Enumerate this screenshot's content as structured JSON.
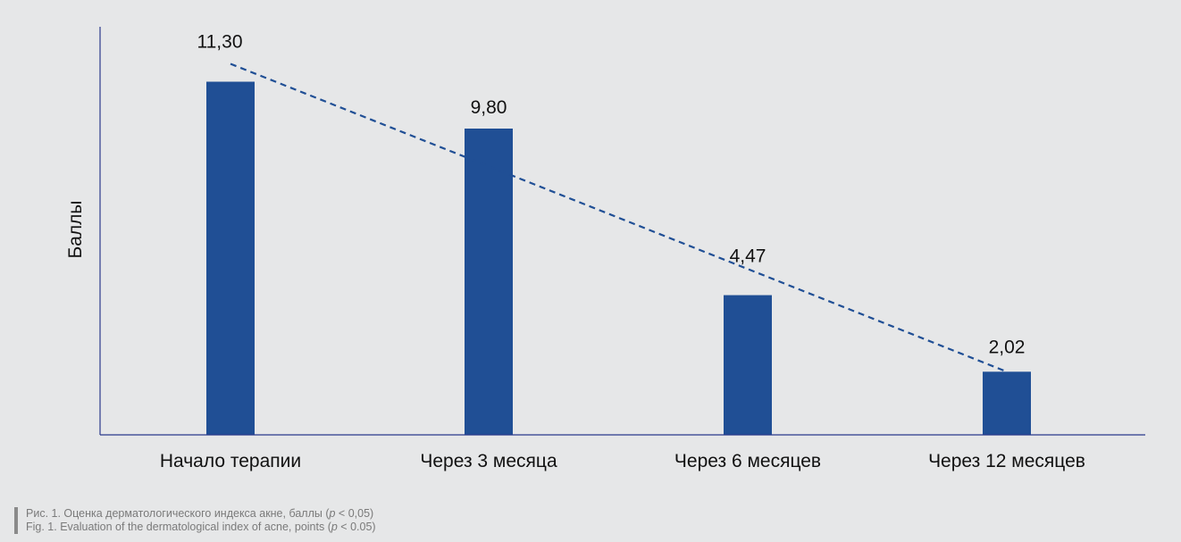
{
  "chart_data": {
    "type": "bar",
    "categories": [
      "Начало терапии",
      "Через 3 месяца",
      "Через 6 месяцев",
      "Через 12 месяцев"
    ],
    "values": [
      11.3,
      9.8,
      4.47,
      2.02
    ],
    "value_labels": [
      "11,30",
      "9,80",
      "4,47",
      "2,02"
    ],
    "ylabel": "Баллы",
    "xlabel": "",
    "trendline": "dashed",
    "grid": false,
    "colors": {
      "bar": "#204f95",
      "trend": "#204f95",
      "axis": "#2b3a8c",
      "background": "#e6e7e8"
    }
  },
  "caption": {
    "ru": {
      "before": "Рис. 1. Оценка дерматологического индекса акне, баллы (",
      "p": "p",
      "after": " < 0,05)"
    },
    "en": {
      "before": "Fig. 1. Evaluation of the dermatological index of acne, points (",
      "p": "p",
      "after": " < 0.05)"
    }
  }
}
